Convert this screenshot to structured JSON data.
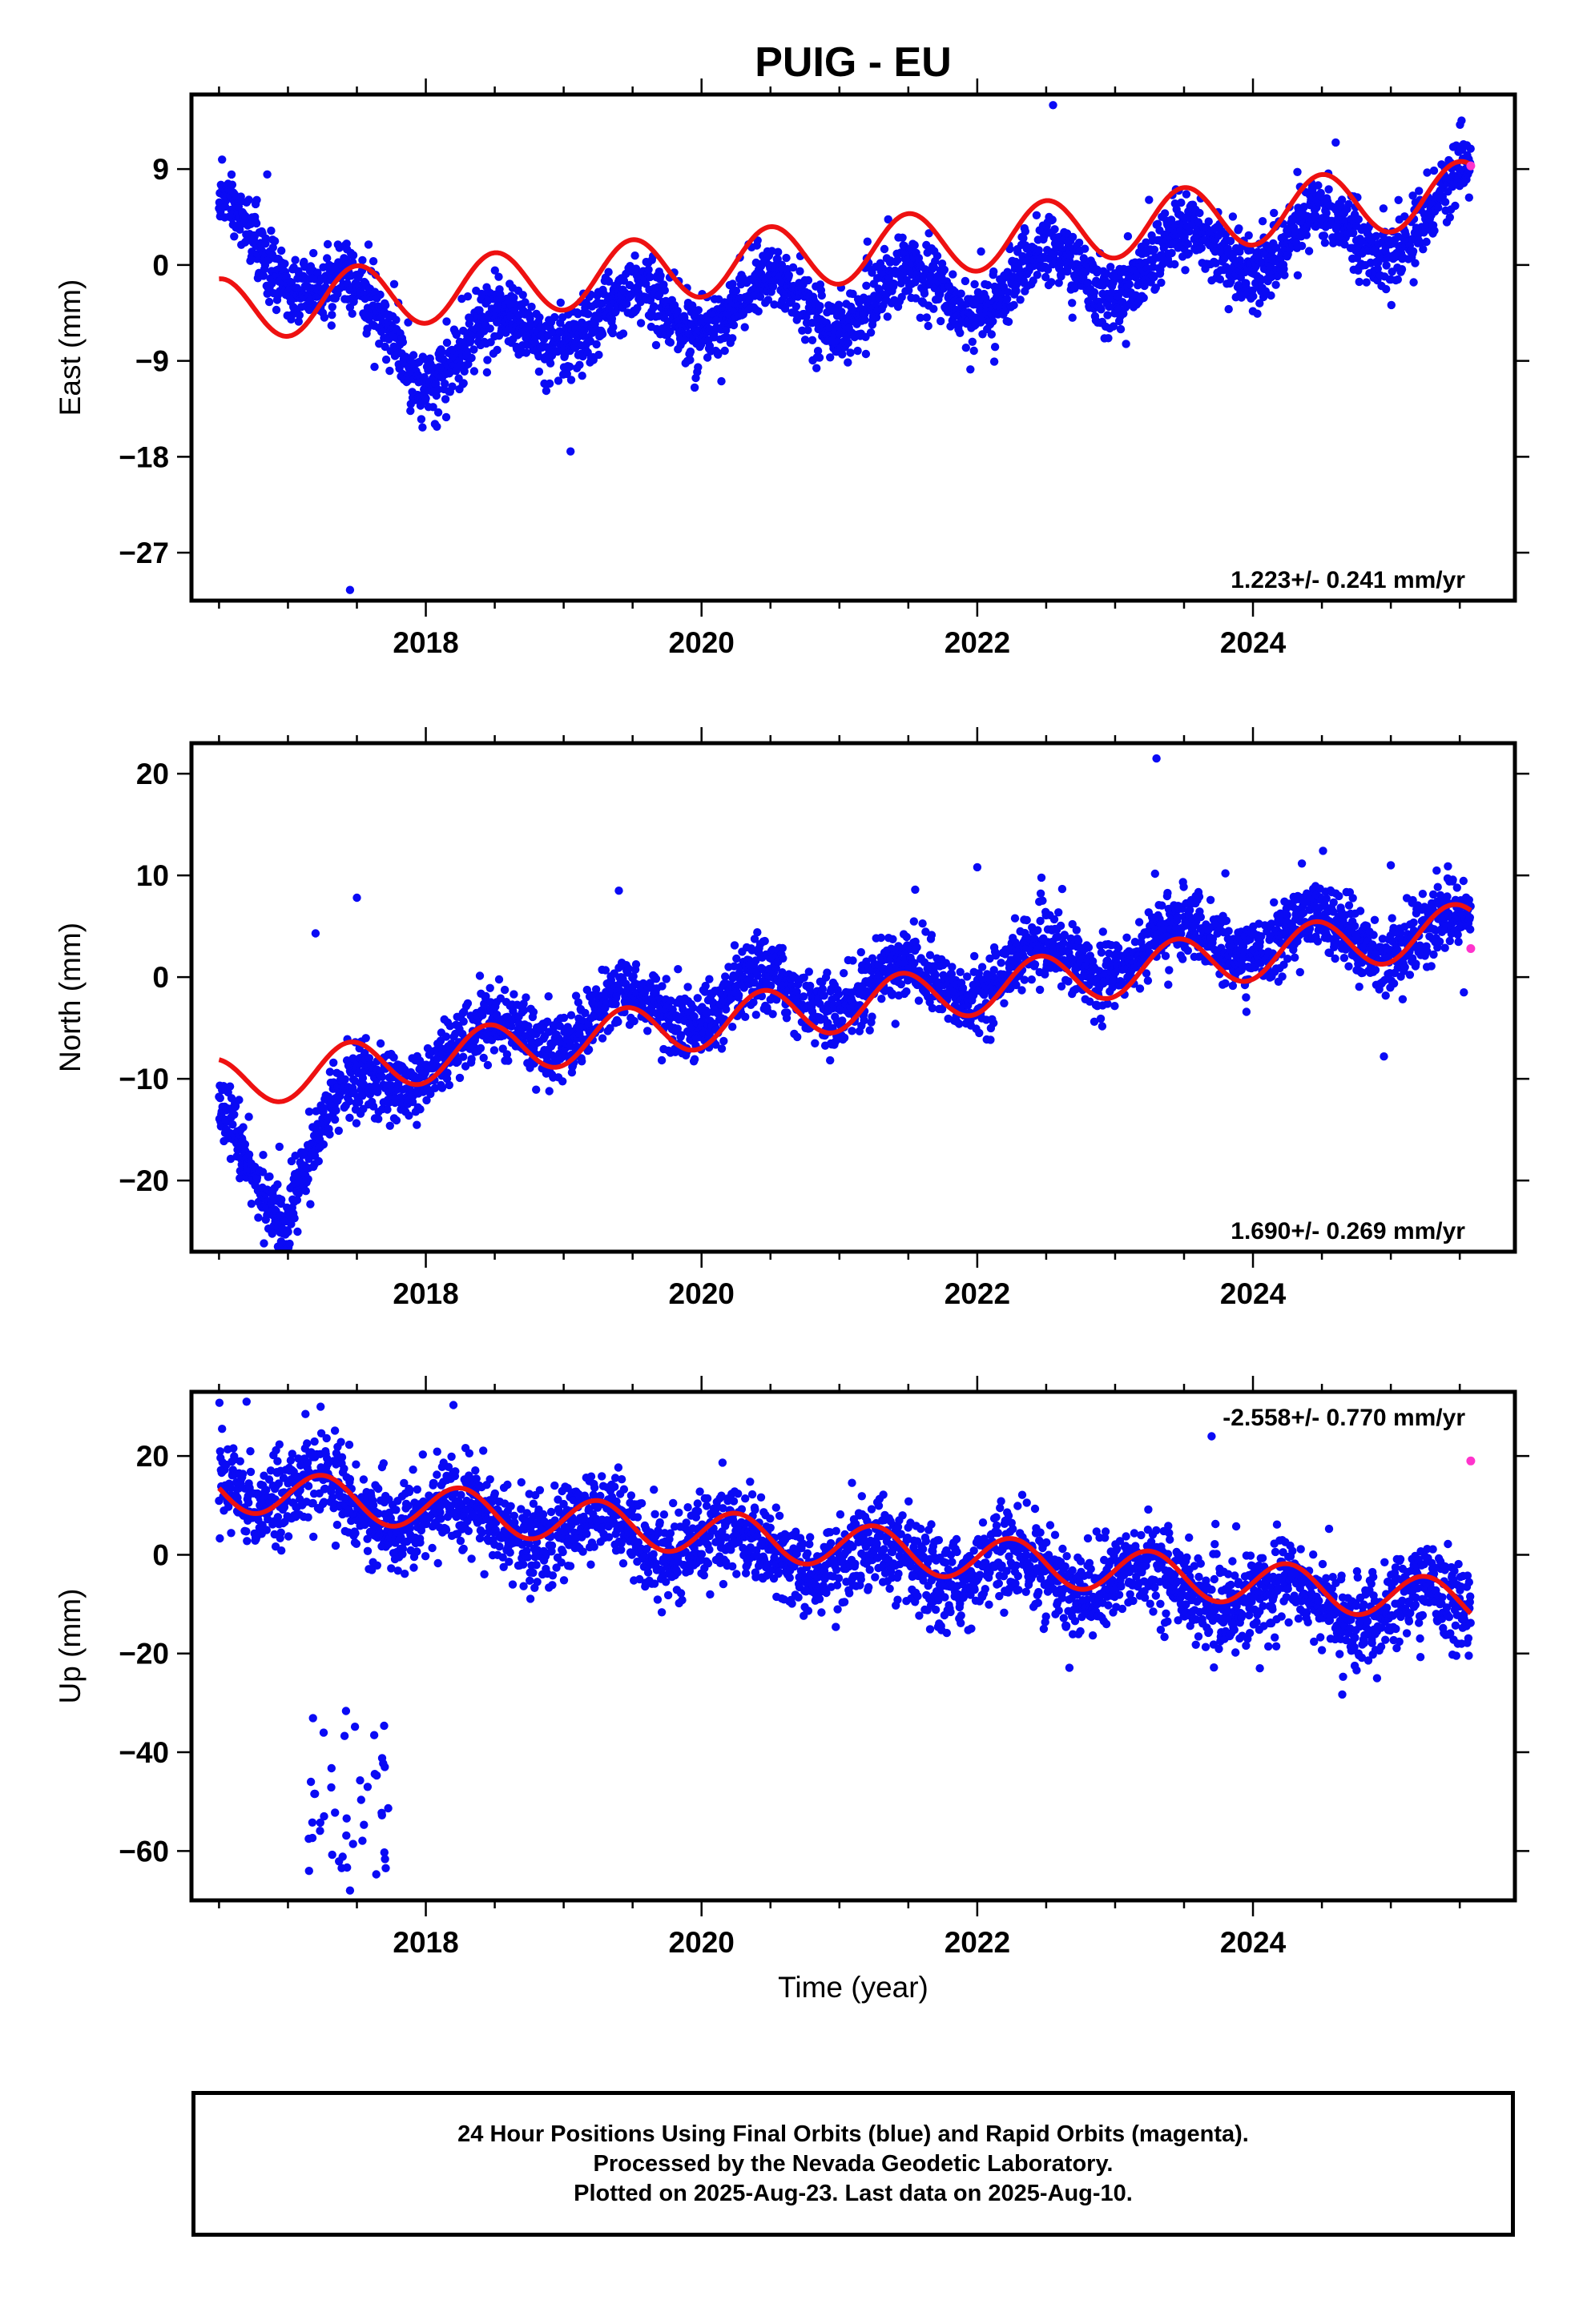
{
  "title": "PUIG - EU",
  "colors": {
    "final_orbits": "#0a0af5",
    "rapid_orbits": "#ff33cc",
    "model_fit": "#ee1111",
    "axis": "#000000"
  },
  "shared_x_axis": {
    "label": "Time (year)",
    "range": [
      2016.3,
      2025.9
    ],
    "major_ticks": [
      2018,
      2020,
      2022,
      2024
    ],
    "major_tick_labels": [
      "2018",
      "2020",
      "2022",
      "2024"
    ],
    "minor_ticks": [
      2016.5,
      2017,
      2017.5,
      2018.5,
      2019,
      2019.5,
      2020.5,
      2021,
      2021.5,
      2022.5,
      2023,
      2023.5,
      2024.5,
      2025,
      2025.5
    ]
  },
  "chart_data": [
    {
      "type": "scatter",
      "panel": "east",
      "ylabel": "East (mm)",
      "ylim": [
        -31.5,
        16
      ],
      "yticks": [
        9,
        0,
        -9,
        -18,
        -27
      ],
      "ytick_labels": [
        "9",
        "0",
        "−9",
        "−18",
        "−27"
      ],
      "rate_label": "1.223+/- 0.241 mm/yr",
      "rate_position": "bottom-right",
      "series": [
        {
          "name": "Final Orbits (blue)",
          "kind": "daily positions",
          "trend": {
            "x": [
              2016.5,
              2017.0,
              2018.0,
              2019.0,
              2020.0,
              2021.0,
              2022.0,
              2023.0,
              2024.0,
              2025.0,
              2025.58
            ],
            "y": [
              4.5,
              0.5,
              -9.0,
              -5.5,
              -4.0,
              -3.5,
              -2.0,
              -0.5,
              2.0,
              3.0,
              7.0
            ]
          },
          "scatter_sd": 1.6,
          "outliers": [
            {
              "x": 2016.85,
              "y": 8.5
            },
            {
              "x": 2017.45,
              "y": -30.5
            },
            {
              "x": 2019.05,
              "y": -17.5
            },
            {
              "x": 2022.55,
              "y": 15.0
            },
            {
              "x": 2024.6,
              "y": 11.5
            },
            {
              "x": 2019.95,
              "y": -11.5
            },
            {
              "x": 2021.95,
              "y": -9.8
            }
          ]
        },
        {
          "name": "Rapid Orbits (magenta)",
          "points": [
            {
              "x": 2025.58,
              "y": 9.3
            }
          ]
        },
        {
          "name": "Model fit (red)",
          "model": {
            "x0": 2016.5,
            "y0": -4.3,
            "rate": 1.223,
            "amp_annual": 3.0,
            "phase_annual": 0.25,
            "amp_semiannual": 0.0,
            "start": 2016.5,
            "end": 2025.58
          }
        }
      ]
    },
    {
      "type": "scatter",
      "panel": "north",
      "ylabel": "North (mm)",
      "ylim": [
        -27,
        23
      ],
      "yticks": [
        20,
        10,
        0,
        -10,
        -20
      ],
      "ytick_labels": [
        "20",
        "10",
        "0",
        "−10",
        "−20"
      ],
      "rate_label": "1.690+/- 0.269 mm/yr",
      "rate_position": "bottom-right",
      "series": [
        {
          "name": "Final Orbits (blue)",
          "kind": "daily positions",
          "trend": {
            "x": [
              2016.5,
              2016.8,
              2016.95,
              2017.3,
              2018.0,
              2019.0,
              2020.0,
              2021.0,
              2022.0,
              2023.0,
              2024.0,
              2025.0,
              2025.58
            ],
            "y": [
              -14.0,
              -20.0,
              -22.0,
              -14.0,
              -8.0,
              -4.5,
              -2.5,
              -1.5,
              0.0,
              2.5,
              4.0,
              4.0,
              4.5
            ]
          },
          "scatter_sd": 1.7,
          "outliers": [
            {
              "x": 2017.2,
              "y": 4.3
            },
            {
              "x": 2017.5,
              "y": 7.8
            },
            {
              "x": 2016.95,
              "y": -26.0
            },
            {
              "x": 2023.3,
              "y": 21.5
            },
            {
              "x": 2024.95,
              "y": -7.8
            },
            {
              "x": 2025.0,
              "y": 11.0
            },
            {
              "x": 2019.4,
              "y": 8.5
            },
            {
              "x": 2021.55,
              "y": 8.6
            },
            {
              "x": 2022.0,
              "y": 10.8
            },
            {
              "x": 2023.8,
              "y": 10.2
            },
            {
              "x": 2025.53,
              "y": -1.5
            }
          ]
        },
        {
          "name": "Rapid Orbits (magenta)",
          "points": [
            {
              "x": 2025.58,
              "y": 2.8
            }
          ]
        },
        {
          "name": "Model fit (red)",
          "model": {
            "x0": 2016.5,
            "y0": -10.5,
            "rate": 1.69,
            "amp_annual": 2.5,
            "phase_annual": 0.2,
            "amp_semiannual": 0.0,
            "start": 2016.5,
            "end": 2025.58
          }
        }
      ]
    },
    {
      "type": "scatter",
      "panel": "up",
      "ylabel": "Up (mm)",
      "ylim": [
        -70,
        33
      ],
      "yticks": [
        20,
        0,
        -20,
        -40,
        -60
      ],
      "ytick_labels": [
        "20",
        "0",
        "−20",
        "−40",
        "−60"
      ],
      "rate_label": "-2.558+/- 0.770 mm/yr",
      "rate_position": "top-right",
      "series": [
        {
          "name": "Final Orbits (blue)",
          "kind": "daily positions",
          "trend": {
            "x": [
              2016.5,
              2017.0,
              2018.0,
              2019.0,
              2020.0,
              2021.0,
              2022.0,
              2023.0,
              2024.0,
              2025.0,
              2025.58
            ],
            "y": [
              16.0,
              13.0,
              8.0,
              5.0,
              3.0,
              -1.0,
              -3.0,
              -5.0,
              -8.0,
              -11.0,
              -10.0
            ]
          },
          "scatter_sd": 4.5,
          "cluster": {
            "x": [
              2017.15,
              2017.75
            ],
            "y": [
              -65.0,
              -30.0
            ],
            "count": 45
          },
          "outliers": [
            {
              "x": 2016.7,
              "y": 31.0
            },
            {
              "x": 2023.7,
              "y": 24.0
            },
            {
              "x": 2024.9,
              "y": -25.0
            },
            {
              "x": 2024.05,
              "y": -23.0
            },
            {
              "x": 2017.45,
              "y": -68.0
            }
          ]
        },
        {
          "name": "Rapid Orbits (magenta)",
          "points": [
            {
              "x": 2025.58,
              "y": 19.0
            }
          ]
        },
        {
          "name": "Model fit (red)",
          "model": {
            "x0": 2016.5,
            "y0": 13.5,
            "rate": -2.558,
            "amp_annual": 4.5,
            "phase_annual": 0.0,
            "amp_semiannual": 0.0,
            "start": 2016.5,
            "end": 2025.58
          }
        }
      ]
    }
  ],
  "footer": {
    "line1": "24 Hour Positions Using Final Orbits (blue) and Rapid Orbits (magenta).",
    "line2": "Processed by the Nevada Geodetic Laboratory.",
    "line3": "Plotted on 2025-Aug-23. Last data on 2025-Aug-10."
  }
}
